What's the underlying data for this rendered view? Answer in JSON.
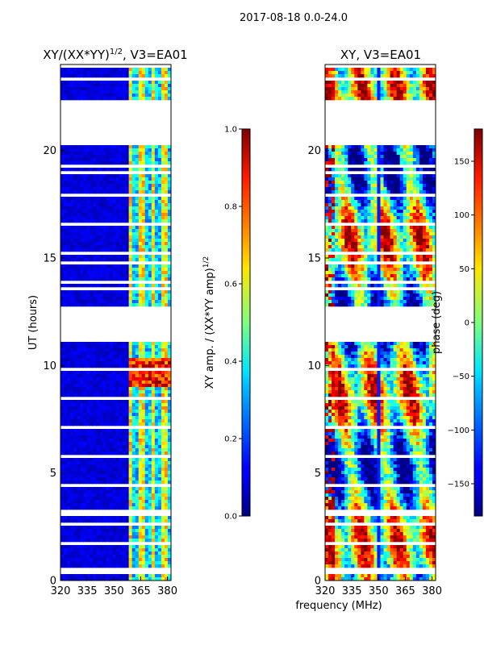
{
  "suptitle": "2017-08-18 0.0-24.0",
  "chart_data": [
    {
      "type": "heatmap",
      "title_main": "XY/(XX*YY)",
      "title_sup": "1/2",
      "title_tail": ", V3=EA01",
      "xlabel": "",
      "ylabel": "UT (hours)",
      "xlim": [
        320,
        382
      ],
      "ylim": [
        0,
        24
      ],
      "xticks": [
        "320",
        "335",
        "350",
        "365",
        "380"
      ],
      "yticks": [
        "0",
        "5",
        "10",
        "15",
        "20"
      ],
      "colorbar": {
        "label_main": "XY amp. / (XX*YY amp)",
        "label_sup": "1/2",
        "range": [
          0.0,
          1.0
        ],
        "ticks": [
          "0.0",
          "0.2",
          "0.4",
          "0.6",
          "0.8",
          "1.0"
        ],
        "colormap": "jet"
      },
      "bright_channels_mhz": [
        359,
        366,
        372,
        379
      ],
      "gap_hours": [
        [
          11.3,
          12.7
        ],
        [
          20.2,
          22.4
        ]
      ]
    },
    {
      "type": "heatmap",
      "title_main": "XY, V3=EA01",
      "xlabel": "frequency (MHz)",
      "ylabel": "",
      "xlim": [
        320,
        382
      ],
      "ylim": [
        0,
        24
      ],
      "xticks": [
        "320",
        "335",
        "350",
        "365",
        "380"
      ],
      "yticks": [
        "0",
        "5",
        "10",
        "15",
        "20"
      ],
      "colorbar": {
        "label_main": "phase (deg)",
        "range": [
          -180,
          180
        ],
        "ticks": [
          "150",
          "100",
          "50",
          "0",
          "−50",
          "−100",
          "−150"
        ],
        "tick_values": [
          150,
          100,
          50,
          0,
          -50,
          -100,
          -150
        ],
        "colormap": "jet"
      },
      "gap_hours": [
        [
          11.3,
          12.7
        ],
        [
          20.2,
          22.4
        ]
      ]
    }
  ],
  "colors": {
    "jet_low": "#00007f",
    "jet_high": "#7f0000",
    "background": "#ffffff"
  }
}
